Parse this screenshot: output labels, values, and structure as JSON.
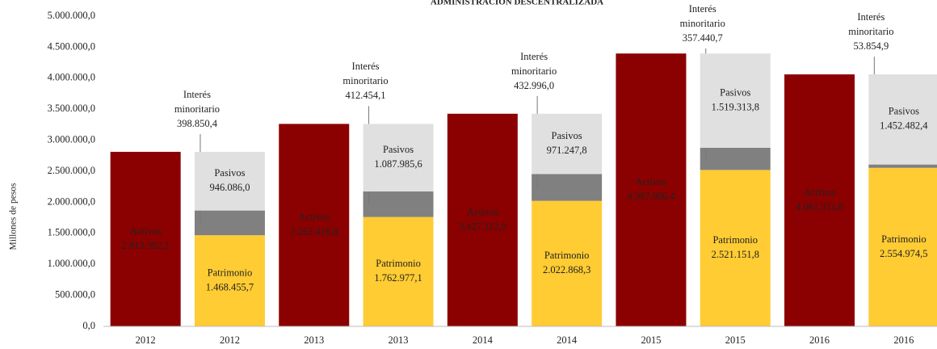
{
  "chart_data": {
    "type": "bar",
    "stacked": true,
    "title": "ADMINISTRACIÓN DESCENTRALIZADA",
    "y_label": "Millones de pesos",
    "categories": [
      "2012",
      "2012",
      "2013",
      "2013",
      "2014",
      "2014",
      "2015",
      "2015",
      "2016",
      "2016"
    ],
    "series": [
      {
        "name": "Activos",
        "color": "#8b0000",
        "values": [
          2813392.1,
          null,
          3263416.8,
          null,
          3427112.0,
          null,
          4397906.4,
          null,
          4061311.8,
          null
        ],
        "value_labels": [
          "2.813.392,1",
          null,
          "3.263.416,8",
          null,
          "3.427.112,0",
          null,
          "4.397.906,4",
          null,
          "4.061.311,8",
          null
        ]
      },
      {
        "name": "Patrimonio",
        "color": "#ffcc33",
        "values": [
          null,
          1468455.7,
          null,
          1762977.1,
          null,
          2022868.3,
          null,
          2521151.8,
          null,
          2554974.5
        ],
        "value_labels": [
          null,
          "1.468.455,7",
          null,
          "1.762.977,1",
          null,
          "2.022.868,3",
          null,
          "2.521.151,8",
          null,
          "2.554.974,5"
        ]
      },
      {
        "name": "Interés minoritario",
        "color": "#808080",
        "values": [
          null,
          398850.4,
          null,
          412454.1,
          null,
          432996.0,
          null,
          357440.7,
          null,
          53854.9
        ],
        "value_labels": [
          null,
          "398.850,4",
          null,
          "412.454,1",
          null,
          "432.996,0",
          null,
          "357.440,7",
          null,
          "53.854,9"
        ]
      },
      {
        "name": "Pasivos",
        "color": "#e0e0e0",
        "values": [
          null,
          946086.0,
          null,
          1087985.6,
          null,
          971247.8,
          null,
          1519313.8,
          null,
          1452482.4
        ],
        "value_labels": [
          null,
          "946.086,0",
          null,
          "1.087.985,6",
          null,
          "971.247,8",
          null,
          "1.519.313,8",
          null,
          "1.452.482,4"
        ]
      }
    ],
    "ylim": [
      0,
      5000000
    ],
    "yticks": [
      {
        "value": 0,
        "label": "0,0"
      },
      {
        "value": 500000,
        "label": "500.000,0"
      },
      {
        "value": 1000000,
        "label": "1.000.000,0"
      },
      {
        "value": 1500000,
        "label": "1.500.000,0"
      },
      {
        "value": 2000000,
        "label": "2.000.000,0"
      },
      {
        "value": 2500000,
        "label": "2.500.000,0"
      },
      {
        "value": 3000000,
        "label": "3.000.000,0"
      },
      {
        "value": 3500000,
        "label": "3.500.000,0"
      },
      {
        "value": 4000000,
        "label": "4.000.000,0"
      },
      {
        "value": 4500000,
        "label": "4.500.000,0"
      },
      {
        "value": 5000000,
        "label": "5.000.000,0"
      }
    ],
    "grid": false
  }
}
